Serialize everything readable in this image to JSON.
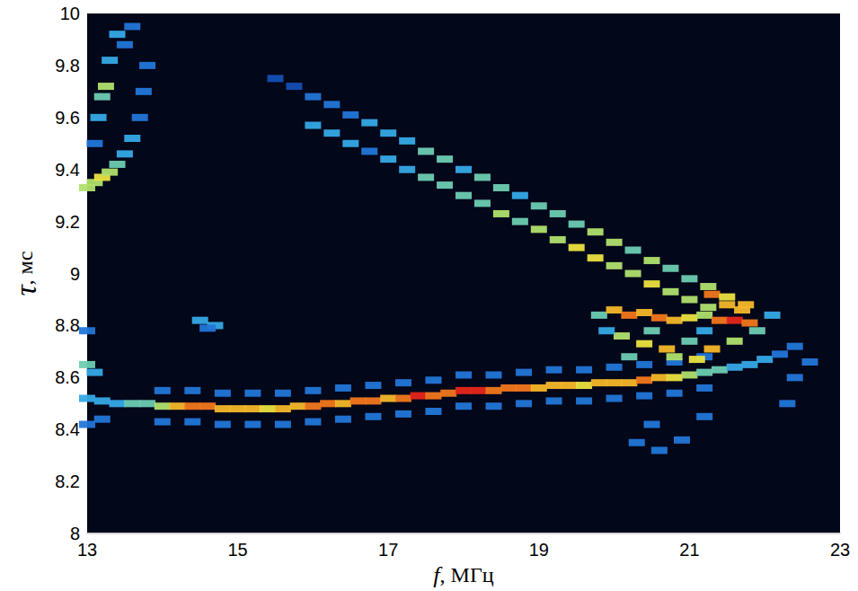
{
  "chart_data": {
    "type": "heatmap",
    "x_label": "f, МГц",
    "y_label": "τ, мс",
    "xlim": [
      13,
      23
    ],
    "xticks": [
      13,
      15,
      17,
      19,
      21,
      23
    ],
    "ylim": [
      8,
      10
    ],
    "yticks": [
      8,
      8.2,
      8.4,
      8.6,
      8.8,
      9,
      9.2,
      9.4,
      9.6,
      9.8,
      10
    ],
    "grid": false,
    "value_range": [
      0,
      10
    ],
    "cells": [
      [
        13.0,
        8.52,
        4
      ],
      [
        13.2,
        8.51,
        4
      ],
      [
        13.4,
        8.5,
        4
      ],
      [
        13.6,
        8.5,
        5
      ],
      [
        13.8,
        8.5,
        5
      ],
      [
        14.0,
        8.49,
        6
      ],
      [
        14.2,
        8.49,
        8
      ],
      [
        14.4,
        8.49,
        9
      ],
      [
        14.6,
        8.49,
        9
      ],
      [
        14.8,
        8.48,
        8
      ],
      [
        15.0,
        8.48,
        8
      ],
      [
        15.2,
        8.48,
        8
      ],
      [
        15.4,
        8.48,
        7
      ],
      [
        15.6,
        8.48,
        8
      ],
      [
        15.8,
        8.49,
        8
      ],
      [
        16.0,
        8.49,
        9
      ],
      [
        16.2,
        8.5,
        9
      ],
      [
        16.4,
        8.5,
        8
      ],
      [
        16.6,
        8.51,
        9
      ],
      [
        16.8,
        8.51,
        9
      ],
      [
        17.0,
        8.52,
        8
      ],
      [
        17.2,
        8.52,
        9
      ],
      [
        17.4,
        8.53,
        10
      ],
      [
        17.6,
        8.53,
        9
      ],
      [
        17.8,
        8.54,
        9
      ],
      [
        18.0,
        8.55,
        10
      ],
      [
        18.2,
        8.55,
        10
      ],
      [
        18.4,
        8.55,
        9
      ],
      [
        18.6,
        8.56,
        9
      ],
      [
        18.8,
        8.56,
        9
      ],
      [
        19.0,
        8.56,
        8
      ],
      [
        19.2,
        8.57,
        8
      ],
      [
        19.4,
        8.57,
        8
      ],
      [
        19.6,
        8.57,
        7
      ],
      [
        19.8,
        8.58,
        8
      ],
      [
        20.0,
        8.58,
        8
      ],
      [
        20.2,
        8.58,
        8
      ],
      [
        20.4,
        8.59,
        9
      ],
      [
        20.6,
        8.6,
        8
      ],
      [
        20.8,
        8.6,
        7
      ],
      [
        21.0,
        8.61,
        6
      ],
      [
        21.2,
        8.62,
        5
      ],
      [
        21.4,
        8.63,
        5
      ],
      [
        21.6,
        8.64,
        4
      ],
      [
        21.8,
        8.65,
        4
      ],
      [
        22.0,
        8.67,
        4
      ],
      [
        22.2,
        8.69,
        3
      ],
      [
        22.4,
        8.72,
        3
      ],
      [
        14.0,
        8.55,
        3
      ],
      [
        14.4,
        8.55,
        3
      ],
      [
        14.8,
        8.54,
        3
      ],
      [
        15.2,
        8.54,
        3
      ],
      [
        15.6,
        8.54,
        3
      ],
      [
        16.0,
        8.55,
        3
      ],
      [
        16.4,
        8.56,
        3
      ],
      [
        16.8,
        8.57,
        3
      ],
      [
        17.2,
        8.58,
        3
      ],
      [
        17.6,
        8.59,
        3
      ],
      [
        18.0,
        8.61,
        3
      ],
      [
        18.4,
        8.61,
        3
      ],
      [
        18.8,
        8.62,
        3
      ],
      [
        19.2,
        8.63,
        3
      ],
      [
        19.6,
        8.63,
        3
      ],
      [
        20.0,
        8.64,
        3
      ],
      [
        20.4,
        8.65,
        3
      ],
      [
        20.8,
        8.66,
        3
      ],
      [
        21.2,
        8.68,
        3
      ],
      [
        14.0,
        8.43,
        3
      ],
      [
        14.4,
        8.43,
        3
      ],
      [
        14.8,
        8.42,
        3
      ],
      [
        15.2,
        8.42,
        3
      ],
      [
        15.6,
        8.42,
        3
      ],
      [
        16.0,
        8.43,
        3
      ],
      [
        16.4,
        8.44,
        3
      ],
      [
        16.8,
        8.45,
        3
      ],
      [
        17.2,
        8.46,
        3
      ],
      [
        17.6,
        8.47,
        3
      ],
      [
        18.0,
        8.49,
        3
      ],
      [
        18.4,
        8.49,
        3
      ],
      [
        18.8,
        8.5,
        3
      ],
      [
        19.2,
        8.51,
        3
      ],
      [
        19.6,
        8.51,
        3
      ],
      [
        20.0,
        8.52,
        3
      ],
      [
        20.4,
        8.53,
        3
      ],
      [
        20.8,
        8.54,
        3
      ],
      [
        21.2,
        8.56,
        3
      ],
      [
        19.8,
        8.84,
        5
      ],
      [
        20.0,
        8.86,
        8
      ],
      [
        20.2,
        8.84,
        9
      ],
      [
        20.4,
        8.85,
        8
      ],
      [
        20.6,
        8.83,
        9
      ],
      [
        20.8,
        8.82,
        8
      ],
      [
        21.0,
        8.83,
        7
      ],
      [
        21.2,
        8.84,
        6
      ],
      [
        21.4,
        8.82,
        9
      ],
      [
        21.6,
        8.82,
        10
      ],
      [
        21.8,
        8.81,
        9
      ],
      [
        21.3,
        8.92,
        9
      ],
      [
        21.5,
        8.88,
        8
      ],
      [
        21.7,
        8.86,
        8
      ],
      [
        20.1,
        8.76,
        6
      ],
      [
        20.4,
        8.73,
        7
      ],
      [
        20.7,
        8.71,
        8
      ],
      [
        21.0,
        8.74,
        5
      ],
      [
        21.3,
        8.71,
        8
      ],
      [
        21.6,
        8.74,
        6
      ],
      [
        21.9,
        8.78,
        5
      ],
      [
        20.2,
        8.68,
        5
      ],
      [
        20.8,
        8.68,
        6
      ],
      [
        21.1,
        8.67,
        7
      ],
      [
        22.1,
        8.84,
        4
      ],
      [
        19.9,
        8.78,
        4
      ],
      [
        21.2,
        8.78,
        4
      ],
      [
        20.5,
        8.78,
        5
      ],
      [
        15.5,
        9.75,
        2
      ],
      [
        15.75,
        9.72,
        2
      ],
      [
        16.0,
        9.68,
        3
      ],
      [
        16.25,
        9.65,
        3
      ],
      [
        16.5,
        9.61,
        3
      ],
      [
        16.75,
        9.58,
        4
      ],
      [
        17.0,
        9.54,
        4
      ],
      [
        17.25,
        9.51,
        4
      ],
      [
        17.5,
        9.47,
        5
      ],
      [
        17.75,
        9.44,
        5
      ],
      [
        18.0,
        9.4,
        4
      ],
      [
        18.25,
        9.37,
        5
      ],
      [
        18.5,
        9.33,
        5
      ],
      [
        18.75,
        9.3,
        4
      ],
      [
        19.0,
        9.26,
        5
      ],
      [
        19.25,
        9.23,
        5
      ],
      [
        19.5,
        9.19,
        5
      ],
      [
        19.75,
        9.16,
        6
      ],
      [
        20.0,
        9.12,
        6
      ],
      [
        20.25,
        9.09,
        5
      ],
      [
        20.5,
        9.05,
        6
      ],
      [
        20.75,
        9.02,
        5
      ],
      [
        21.0,
        8.98,
        5
      ],
      [
        21.25,
        8.95,
        6
      ],
      [
        21.5,
        8.91,
        7
      ],
      [
        21.75,
        8.88,
        8
      ],
      [
        16.0,
        9.57,
        4
      ],
      [
        16.25,
        9.54,
        4
      ],
      [
        16.5,
        9.5,
        4
      ],
      [
        16.75,
        9.47,
        3
      ],
      [
        17.0,
        9.44,
        4
      ],
      [
        17.25,
        9.4,
        4
      ],
      [
        17.5,
        9.37,
        5
      ],
      [
        17.75,
        9.34,
        5
      ],
      [
        18.0,
        9.3,
        5
      ],
      [
        18.25,
        9.27,
        5
      ],
      [
        18.5,
        9.23,
        6
      ],
      [
        18.75,
        9.2,
        5
      ],
      [
        19.0,
        9.17,
        6
      ],
      [
        19.25,
        9.13,
        6
      ],
      [
        19.5,
        9.1,
        7
      ],
      [
        19.75,
        9.06,
        7
      ],
      [
        20.0,
        9.03,
        6
      ],
      [
        20.25,
        9.0,
        6
      ],
      [
        20.5,
        8.96,
        7
      ],
      [
        20.75,
        8.93,
        6
      ],
      [
        21.0,
        8.9,
        6
      ],
      [
        21.25,
        8.87,
        6
      ],
      [
        13.0,
        9.33,
        6
      ],
      [
        13.1,
        9.35,
        6
      ],
      [
        13.2,
        9.37,
        7
      ],
      [
        13.3,
        9.39,
        6
      ],
      [
        13.4,
        9.42,
        5
      ],
      [
        13.5,
        9.46,
        4
      ],
      [
        13.6,
        9.52,
        4
      ],
      [
        13.7,
        9.6,
        3
      ],
      [
        13.75,
        9.7,
        3
      ],
      [
        13.8,
        9.8,
        3
      ],
      [
        13.2,
        9.68,
        5
      ],
      [
        13.25,
        9.72,
        6
      ],
      [
        13.3,
        9.82,
        4
      ],
      [
        13.4,
        9.92,
        4
      ],
      [
        13.5,
        9.88,
        3
      ],
      [
        13.6,
        9.95,
        3
      ],
      [
        13.15,
        9.6,
        4
      ],
      [
        13.1,
        9.5,
        3
      ],
      [
        13.0,
        8.65,
        5
      ],
      [
        13.1,
        8.62,
        4
      ],
      [
        13.0,
        8.42,
        3
      ],
      [
        13.2,
        8.44,
        3
      ],
      [
        13.0,
        8.78,
        3
      ],
      [
        14.5,
        8.82,
        4
      ],
      [
        14.7,
        8.8,
        4
      ],
      [
        14.6,
        8.79,
        3
      ],
      [
        20.3,
        8.35,
        3
      ],
      [
        20.6,
        8.32,
        3
      ],
      [
        20.9,
        8.36,
        3
      ],
      [
        21.2,
        8.45,
        3
      ],
      [
        20.5,
        8.42,
        3
      ],
      [
        22.4,
        8.6,
        3
      ],
      [
        22.6,
        8.66,
        3
      ],
      [
        22.3,
        8.5,
        3
      ]
    ]
  }
}
